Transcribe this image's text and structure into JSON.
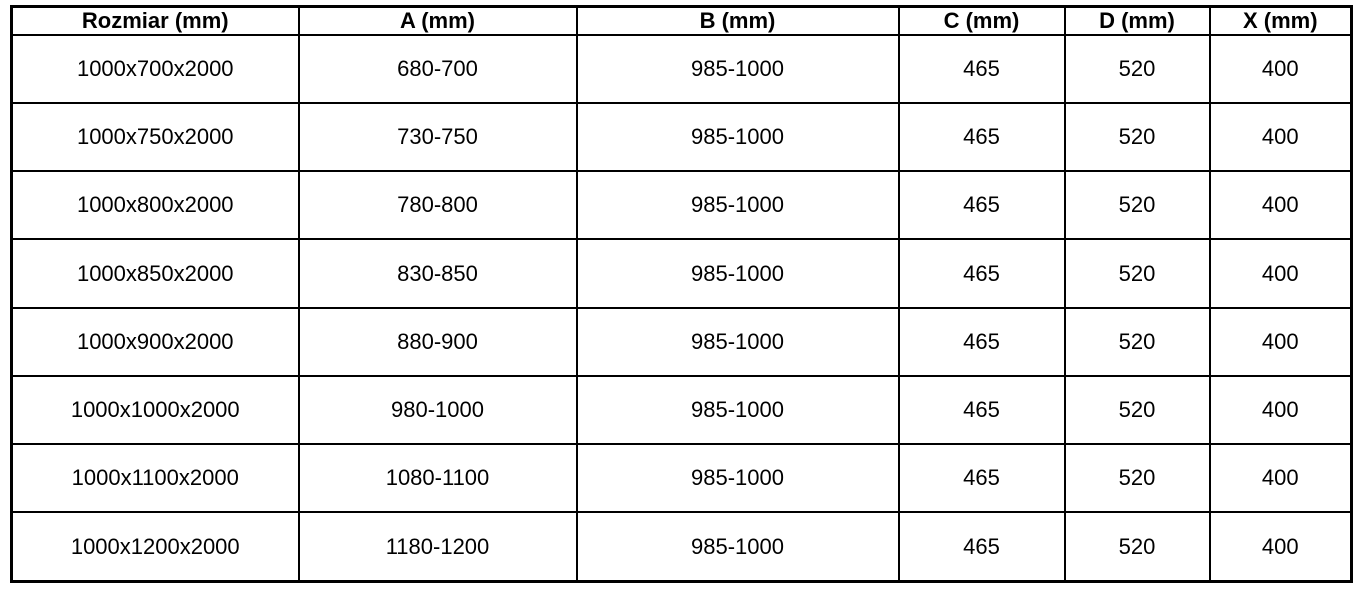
{
  "colors": {
    "border": "#000000",
    "background": "#ffffff",
    "text": "#000000"
  },
  "table": {
    "columns": [
      "Rozmiar (mm)",
      "A (mm)",
      "B (mm)",
      "C (mm)",
      "D (mm)",
      "X (mm)"
    ],
    "rows": [
      [
        "1000x700x2000",
        "680-700",
        "985-1000",
        "465",
        "520",
        "400"
      ],
      [
        "1000x750x2000",
        "730-750",
        "985-1000",
        "465",
        "520",
        "400"
      ],
      [
        "1000x800x2000",
        "780-800",
        "985-1000",
        "465",
        "520",
        "400"
      ],
      [
        "1000x850x2000",
        "830-850",
        "985-1000",
        "465",
        "520",
        "400"
      ],
      [
        "1000x900x2000",
        "880-900",
        "985-1000",
        "465",
        "520",
        "400"
      ],
      [
        "1000x1000x2000",
        "980-1000",
        "985-1000",
        "465",
        "520",
        "400"
      ],
      [
        "1000x1100x2000",
        "1080-1100",
        "985-1000",
        "465",
        "520",
        "400"
      ],
      [
        "1000x1200x2000",
        "1180-1200",
        "985-1000",
        "465",
        "520",
        "400"
      ]
    ]
  }
}
